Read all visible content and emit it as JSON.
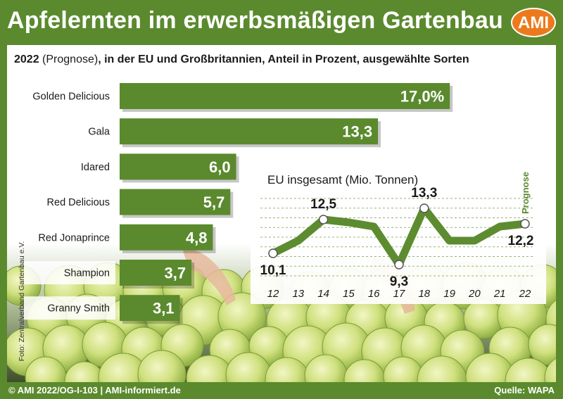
{
  "header": {
    "title": "Apfelernten im erwerbsmäßigen Gartenbau",
    "logo_text": "AMI"
  },
  "subtitle": {
    "bold_part": "2022",
    "normal_part": " (Prognose)",
    "rest": ", in der EU und Großbritannien, Anteil in Prozent, ausgewählte Sorten"
  },
  "colors": {
    "brand_green": "#5b8a2e",
    "bar_green": "#5a8a2d",
    "line_green": "#5d8c30",
    "logo_orange": "#ec7a1c"
  },
  "chart_data": [
    {
      "type": "bar",
      "orientation": "horizontal",
      "categories": [
        "Golden Delicious",
        "Gala",
        "Idared",
        "Red Delicious",
        "Red Jonaprince",
        "Shampion",
        "Granny Smith"
      ],
      "values": [
        17.0,
        13.3,
        6.0,
        5.7,
        4.8,
        3.7,
        3.1
      ],
      "value_labels": [
        "17,0%",
        "13,3",
        "6,0",
        "5,7",
        "4,8",
        "3,7",
        "3,1"
      ]
    },
    {
      "type": "line",
      "title": "EU insgesamt (Mio. Tonnen)",
      "x": [
        "12",
        "13",
        "14",
        "15",
        "16",
        "17",
        "18",
        "19",
        "20",
        "21",
        "22"
      ],
      "y": [
        10.1,
        11.0,
        12.5,
        12.3,
        12.0,
        9.3,
        13.3,
        11.0,
        11.0,
        12.0,
        12.2
      ],
      "labeled_points": [
        {
          "x": "12",
          "label": "10,1"
        },
        {
          "x": "14",
          "label": "12,5"
        },
        {
          "x": "17",
          "label": "9,3"
        },
        {
          "x": "18",
          "label": "13,3"
        },
        {
          "x": "22",
          "label": "12,2"
        }
      ],
      "annotation": "Prognose",
      "grid": true
    }
  ],
  "photo_credit": "Foto: Zentralverband Gartenbau e.V.",
  "footer": {
    "left": "© AMI 2022/OG-I-103 | AMI-informiert.de",
    "right": "Quelle: WAPA"
  }
}
